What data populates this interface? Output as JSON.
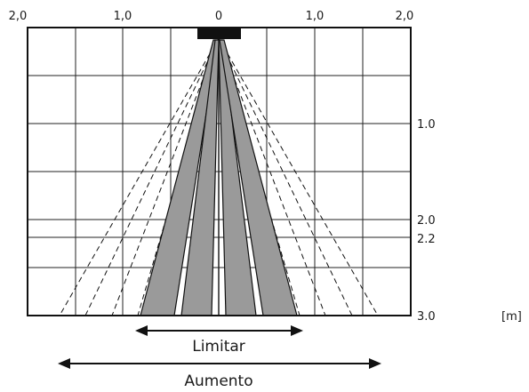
{
  "top_axis": {
    "ticks": [
      "2,0",
      "1,0",
      "0",
      "1,0",
      "2,0"
    ]
  },
  "right_axis": {
    "ticks": [
      "1.0",
      "2.0",
      "2.2",
      "3.0"
    ],
    "unit": "[m]"
  },
  "range_labels": {
    "limit": "Limitar",
    "increase": "Aumento"
  },
  "colors": {
    "frame": "#111111",
    "grid": "#222222",
    "beam_fill": "#9a9a9a",
    "sensor": "#111111"
  }
}
